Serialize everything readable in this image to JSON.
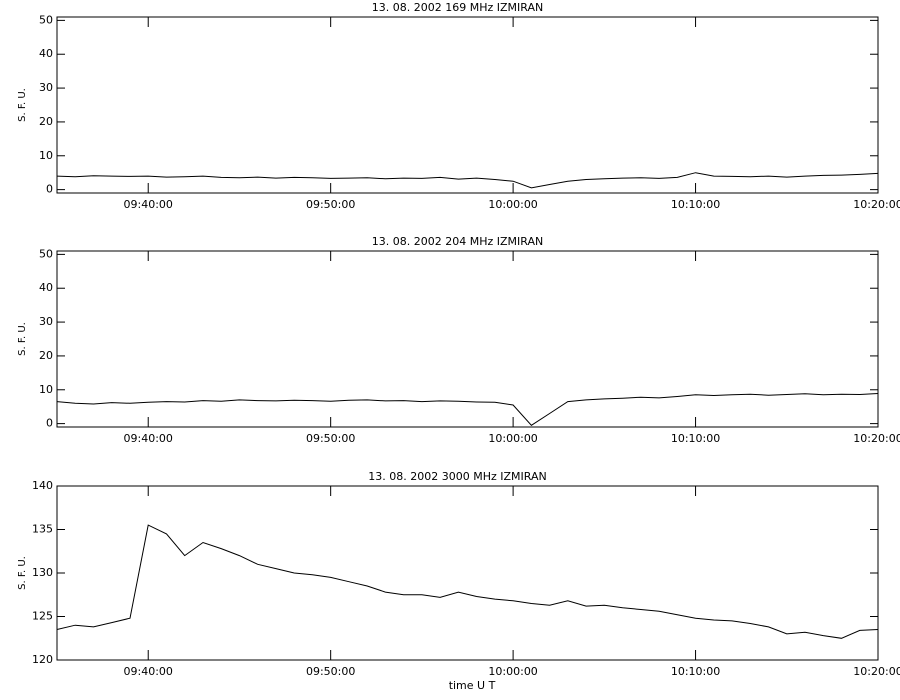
{
  "chart_data": [
    {
      "type": "line",
      "title": "13.  08.  2002    169 MHz    IZMIRAN",
      "ylabel": "S.  F.  U.",
      "color": "#000000",
      "x": [
        "09:35:00",
        "09:36:00",
        "09:37:00",
        "09:38:00",
        "09:39:00",
        "09:40:00",
        "09:41:00",
        "09:42:00",
        "09:43:00",
        "09:44:00",
        "09:45:00",
        "09:46:00",
        "09:47:00",
        "09:48:00",
        "09:49:00",
        "09:50:00",
        "09:51:00",
        "09:52:00",
        "09:53:00",
        "09:54:00",
        "09:55:00",
        "09:56:00",
        "09:57:00",
        "09:58:00",
        "09:59:00",
        "10:00:00",
        "10:01:00",
        "10:02:00",
        "10:03:00",
        "10:04:00",
        "10:05:00",
        "10:06:00",
        "10:07:00",
        "10:08:00",
        "10:09:00",
        "10:10:00",
        "10:11:00",
        "10:12:00",
        "10:13:00",
        "10:14:00",
        "10:15:00",
        "10:16:00",
        "10:17:00",
        "10:18:00",
        "10:19:00",
        "10:20:00"
      ],
      "values": [
        4.0,
        3.8,
        4.1,
        4.0,
        3.9,
        4.0,
        3.7,
        3.8,
        4.0,
        3.6,
        3.5,
        3.7,
        3.4,
        3.6,
        3.5,
        3.3,
        3.4,
        3.5,
        3.2,
        3.4,
        3.3,
        3.6,
        3.1,
        3.4,
        3.0,
        2.5,
        0.5,
        1.5,
        2.5,
        3.0,
        3.2,
        3.4,
        3.5,
        3.3,
        3.6,
        5.0,
        4.0,
        3.9,
        3.8,
        4.0,
        3.7,
        4.0,
        4.2,
        4.3,
        4.5,
        4.8
      ],
      "xlim": [
        "09:35:00",
        "10:20:00"
      ],
      "xticks": [
        "09:40:00",
        "09:50:00",
        "10:00:00",
        "10:10:00",
        "10:20:00"
      ],
      "ylim": [
        -1,
        51
      ],
      "yticks": [
        0,
        10,
        20,
        30,
        40,
        50
      ]
    },
    {
      "type": "line",
      "title": "13.  08.  2002    204 MHz    IZMIRAN",
      "ylabel": "S.  F.  U.",
      "color": "#000000",
      "x": [
        "09:35:00",
        "09:36:00",
        "09:37:00",
        "09:38:00",
        "09:39:00",
        "09:40:00",
        "09:41:00",
        "09:42:00",
        "09:43:00",
        "09:44:00",
        "09:45:00",
        "09:46:00",
        "09:47:00",
        "09:48:00",
        "09:49:00",
        "09:50:00",
        "09:51:00",
        "09:52:00",
        "09:53:00",
        "09:54:00",
        "09:55:00",
        "09:56:00",
        "09:57:00",
        "09:58:00",
        "09:59:00",
        "10:00:00",
        "10:01:00",
        "10:02:00",
        "10:03:00",
        "10:04:00",
        "10:05:00",
        "10:06:00",
        "10:07:00",
        "10:08:00",
        "10:09:00",
        "10:10:00",
        "10:11:00",
        "10:12:00",
        "10:13:00",
        "10:14:00",
        "10:15:00",
        "10:16:00",
        "10:17:00",
        "10:18:00",
        "10:19:00",
        "10:20:00"
      ],
      "values": [
        6.5,
        6.0,
        5.8,
        6.2,
        6.0,
        6.3,
        6.5,
        6.4,
        6.8,
        6.6,
        7.0,
        6.8,
        6.7,
        6.9,
        6.8,
        6.6,
        6.9,
        7.0,
        6.7,
        6.8,
        6.5,
        6.7,
        6.6,
        6.4,
        6.3,
        5.5,
        -0.5,
        3.0,
        6.5,
        7.0,
        7.3,
        7.5,
        7.8,
        7.6,
        8.0,
        8.5,
        8.3,
        8.5,
        8.7,
        8.4,
        8.6,
        8.8,
        8.5,
        8.7,
        8.6,
        8.9
      ],
      "xlim": [
        "09:35:00",
        "10:20:00"
      ],
      "xticks": [
        "09:40:00",
        "09:50:00",
        "10:00:00",
        "10:10:00",
        "10:20:00"
      ],
      "ylim": [
        -1,
        51
      ],
      "yticks": [
        0,
        10,
        20,
        30,
        40,
        50
      ]
    },
    {
      "type": "line",
      "title": "13.  08.  2002    3000 MHz    IZMIRAN",
      "ylabel": "S.  F.  U.",
      "xlabel": "time   U T",
      "color": "#000000",
      "x": [
        "09:35:00",
        "09:36:00",
        "09:37:00",
        "09:38:00",
        "09:39:00",
        "09:40:00",
        "09:41:00",
        "09:42:00",
        "09:43:00",
        "09:44:00",
        "09:45:00",
        "09:46:00",
        "09:47:00",
        "09:48:00",
        "09:49:00",
        "09:50:00",
        "09:51:00",
        "09:52:00",
        "09:53:00",
        "09:54:00",
        "09:55:00",
        "09:56:00",
        "09:57:00",
        "09:58:00",
        "09:59:00",
        "10:00:00",
        "10:01:00",
        "10:02:00",
        "10:03:00",
        "10:04:00",
        "10:05:00",
        "10:06:00",
        "10:07:00",
        "10:08:00",
        "10:09:00",
        "10:10:00",
        "10:11:00",
        "10:12:00",
        "10:13:00",
        "10:14:00",
        "10:15:00",
        "10:16:00",
        "10:17:00",
        "10:18:00",
        "10:19:00",
        "10:20:00"
      ],
      "values": [
        123.5,
        124,
        123.8,
        124.3,
        124.8,
        135.5,
        134.5,
        132,
        133.5,
        132.8,
        132,
        131,
        130.5,
        130,
        129.8,
        129.5,
        129,
        128.5,
        127.8,
        127.5,
        127.5,
        127.2,
        127.8,
        127.3,
        127,
        126.8,
        126.5,
        126.3,
        126.8,
        126.2,
        126.3,
        126,
        125.8,
        125.6,
        125.2,
        124.8,
        124.6,
        124.5,
        124.2,
        123.8,
        123,
        123.2,
        122.8,
        122.5,
        123.4,
        123.5
      ],
      "xlim": [
        "09:35:00",
        "10:20:00"
      ],
      "xticks": [
        "09:40:00",
        "09:50:00",
        "10:00:00",
        "10:10:00",
        "10:20:00"
      ],
      "ylim": [
        120,
        140
      ],
      "yticks": [
        120,
        125,
        130,
        135,
        140
      ]
    }
  ]
}
